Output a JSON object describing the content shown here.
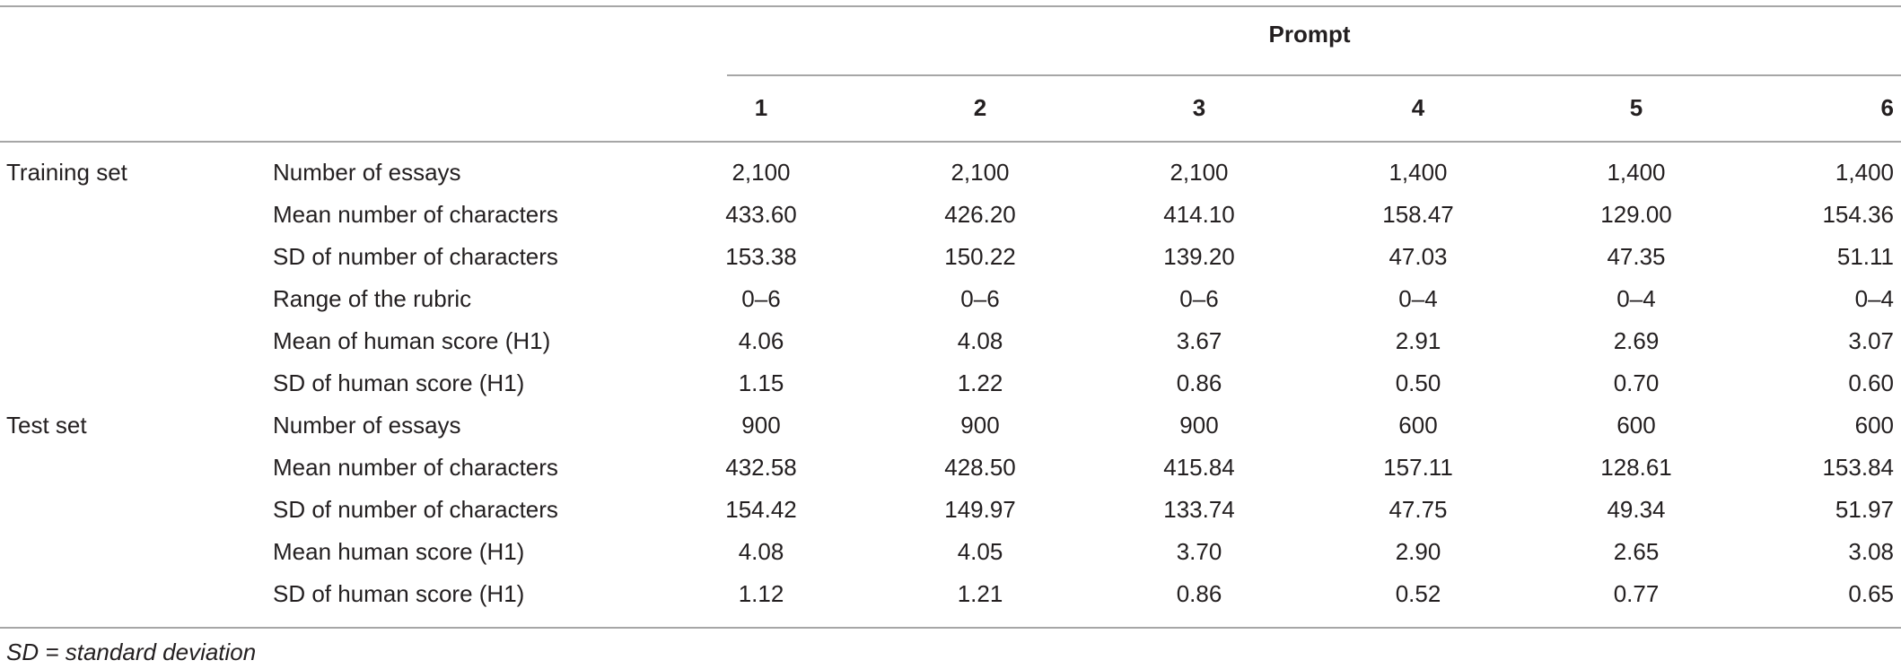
{
  "table": {
    "header": {
      "group": "Prompt",
      "columns": [
        "1",
        "2",
        "3",
        "4",
        "5",
        "6"
      ]
    },
    "sections": [
      {
        "label": "Training set",
        "rows": [
          {
            "label": "Number of essays",
            "cells": [
              "2,100",
              "2,100",
              "2,100",
              "1,400",
              "1,400",
              "1,400"
            ]
          },
          {
            "label": "Mean number of characters",
            "cells": [
              "433.60",
              "426.20",
              "414.10",
              "158.47",
              "129.00",
              "154.36"
            ]
          },
          {
            "label": "SD of number of characters",
            "cells": [
              "153.38",
              "150.22",
              "139.20",
              "47.03",
              "47.35",
              "51.11"
            ]
          },
          {
            "label": "Range of the rubric",
            "cells": [
              "0–6",
              "0–6",
              "0–6",
              "0–4",
              "0–4",
              "0–4"
            ]
          },
          {
            "label": "Mean of human score (H1)",
            "cells": [
              "4.06",
              "4.08",
              "3.67",
              "2.91",
              "2.69",
              "3.07"
            ]
          },
          {
            "label": "SD of human score (H1)",
            "cells": [
              "1.15",
              "1.22",
              "0.86",
              "0.50",
              "0.70",
              "0.60"
            ]
          }
        ]
      },
      {
        "label": "Test set",
        "rows": [
          {
            "label": "Number of essays",
            "cells": [
              "900",
              "900",
              "900",
              "600",
              "600",
              "600"
            ]
          },
          {
            "label": "Mean number of characters",
            "cells": [
              "432.58",
              "428.50",
              "415.84",
              "157.11",
              "128.61",
              "153.84"
            ]
          },
          {
            "label": "SD of number of characters",
            "cells": [
              "154.42",
              "149.97",
              "133.74",
              "47.75",
              "49.34",
              "51.97"
            ]
          },
          {
            "label": "Mean human score (H1)",
            "cells": [
              "4.08",
              "4.05",
              "3.70",
              "2.90",
              "2.65",
              "3.08"
            ]
          },
          {
            "label": "SD of human score (H1)",
            "cells": [
              "1.12",
              "1.21",
              "0.86",
              "0.52",
              "0.77",
              "0.65"
            ]
          }
        ]
      }
    ],
    "note": "SD = standard deviation"
  }
}
